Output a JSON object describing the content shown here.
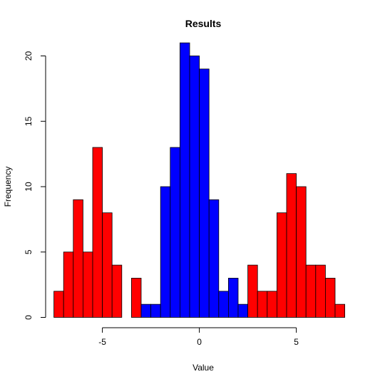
{
  "chart_data": {
    "type": "bar",
    "title": "Results",
    "xlabel": "Value",
    "ylabel": "Frequency",
    "xlim": [
      -7.5,
      7.75
    ],
    "ylim": [
      0,
      21
    ],
    "x_ticks": [
      -5,
      0,
      5
    ],
    "y_ticks": [
      0,
      5,
      10,
      15,
      20
    ],
    "bin_width": 0.5,
    "grid": false,
    "legend": "none",
    "colors": {
      "red": "#ff0000",
      "blue": "#0000ff",
      "border": "#000000"
    },
    "bins": [
      {
        "x0": -7.5,
        "x1": -7.0,
        "count": 2,
        "color": "red"
      },
      {
        "x0": -7.0,
        "x1": -6.5,
        "count": 5,
        "color": "red"
      },
      {
        "x0": -6.5,
        "x1": -6.0,
        "count": 9,
        "color": "red"
      },
      {
        "x0": -6.0,
        "x1": -5.5,
        "count": 5,
        "color": "red"
      },
      {
        "x0": -5.5,
        "x1": -5.0,
        "count": 13,
        "color": "red"
      },
      {
        "x0": -5.0,
        "x1": -4.5,
        "count": 8,
        "color": "red"
      },
      {
        "x0": -4.5,
        "x1": -4.0,
        "count": 4,
        "color": "red"
      },
      {
        "x0": -3.5,
        "x1": -3.0,
        "count": 3,
        "color": "red"
      },
      {
        "x0": -3.0,
        "x1": -2.5,
        "count": 1,
        "color": "blue"
      },
      {
        "x0": -2.5,
        "x1": -2.0,
        "count": 1,
        "color": "blue"
      },
      {
        "x0": -2.0,
        "x1": -1.5,
        "count": 10,
        "color": "blue"
      },
      {
        "x0": -1.5,
        "x1": -1.0,
        "count": 13,
        "color": "blue"
      },
      {
        "x0": -1.0,
        "x1": -0.5,
        "count": 21,
        "color": "blue"
      },
      {
        "x0": -0.5,
        "x1": 0.0,
        "count": 20,
        "color": "blue"
      },
      {
        "x0": 0.0,
        "x1": 0.5,
        "count": 19,
        "color": "blue"
      },
      {
        "x0": 0.5,
        "x1": 1.0,
        "count": 9,
        "color": "blue"
      },
      {
        "x0": 1.0,
        "x1": 1.5,
        "count": 2,
        "color": "blue"
      },
      {
        "x0": 1.5,
        "x1": 2.0,
        "count": 3,
        "color": "blue"
      },
      {
        "x0": 2.0,
        "x1": 2.5,
        "count": 1,
        "color": "blue"
      },
      {
        "x0": 2.5,
        "x1": 3.0,
        "count": 4,
        "color": "red"
      },
      {
        "x0": 3.0,
        "x1": 3.5,
        "count": 2,
        "color": "red"
      },
      {
        "x0": 3.5,
        "x1": 4.0,
        "count": 2,
        "color": "red"
      },
      {
        "x0": 4.0,
        "x1": 4.5,
        "count": 8,
        "color": "red"
      },
      {
        "x0": 4.5,
        "x1": 5.0,
        "count": 11,
        "color": "red"
      },
      {
        "x0": 5.0,
        "x1": 5.5,
        "count": 10,
        "color": "red"
      },
      {
        "x0": 5.5,
        "x1": 6.0,
        "count": 4,
        "color": "red"
      },
      {
        "x0": 6.0,
        "x1": 6.5,
        "count": 4,
        "color": "red"
      },
      {
        "x0": 6.5,
        "x1": 7.0,
        "count": 3,
        "color": "red"
      },
      {
        "x0": 7.0,
        "x1": 7.5,
        "count": 1,
        "color": "red"
      }
    ]
  }
}
